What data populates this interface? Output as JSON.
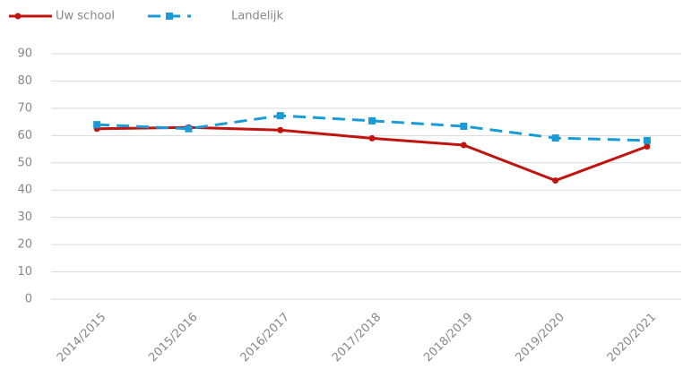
{
  "chart_data": {
    "type": "line",
    "categories": [
      "2014/2015",
      "2015/2016",
      "2016/2017",
      "2017/2018",
      "2018/2019",
      "2019/2020",
      "2020/2021"
    ],
    "series": [
      {
        "name": "Uw school",
        "color": "#c0140f",
        "values": [
          62.5,
          63,
          62,
          59,
          56.5,
          43.5,
          56
        ]
      },
      {
        "name": "Landelijk",
        "color": "#1a9ad6",
        "values": [
          64,
          62.5,
          67.3,
          65.4,
          63.4,
          59.1,
          58.2
        ]
      }
    ],
    "ylim": [
      0,
      90
    ],
    "yticks": [
      0,
      10,
      20,
      30,
      40,
      50,
      60,
      70,
      80,
      90
    ],
    "grid": true,
    "legend": "top-left"
  }
}
